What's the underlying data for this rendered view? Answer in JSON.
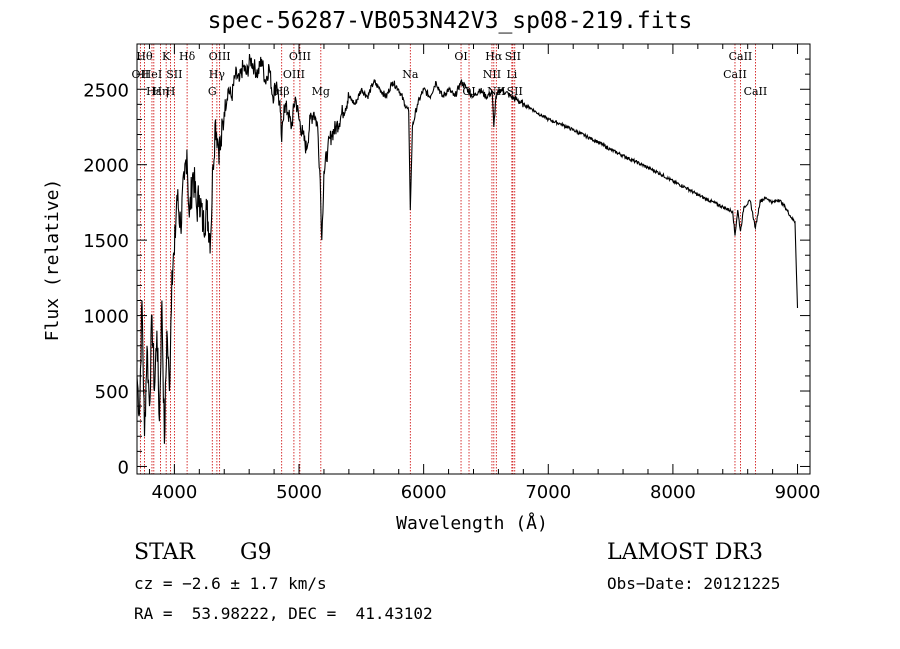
{
  "chart_data": {
    "type": "line",
    "title": "spec-56287-VB053N42V3_sp08-219.fits",
    "xlabel": "Wavelength (Å)",
    "ylabel": "Flux (relative)",
    "xlim": [
      3700,
      9100
    ],
    "ylim": [
      -50,
      2800
    ],
    "xticks": [
      4000,
      5000,
      6000,
      7000,
      8000,
      9000
    ],
    "yticks": [
      0,
      500,
      1000,
      1500,
      2000,
      2500
    ],
    "series": [
      {
        "name": "flux",
        "x": [
          3700,
          3720,
          3740,
          3760,
          3780,
          3800,
          3820,
          3840,
          3860,
          3880,
          3900,
          3920,
          3940,
          3960,
          3980,
          4000,
          4020,
          4050,
          4080,
          4100,
          4120,
          4150,
          4180,
          4200,
          4230,
          4260,
          4290,
          4310,
          4330,
          4350,
          4370,
          4400,
          4430,
          4460,
          4490,
          4520,
          4550,
          4580,
          4610,
          4640,
          4670,
          4700,
          4730,
          4760,
          4790,
          4820,
          4850,
          4861,
          4880,
          4910,
          4940,
          4970,
          5000,
          5030,
          5060,
          5090,
          5120,
          5150,
          5170,
          5183,
          5200,
          5230,
          5260,
          5300,
          5350,
          5400,
          5450,
          5500,
          5550,
          5600,
          5650,
          5700,
          5750,
          5800,
          5850,
          5880,
          5893,
          5910,
          5950,
          6000,
          6050,
          6100,
          6150,
          6200,
          6250,
          6300,
          6350,
          6400,
          6450,
          6500,
          6550,
          6563,
          6580,
          6620,
          6660,
          6700,
          6750,
          6800,
          6850,
          6900,
          7000,
          7100,
          7200,
          7300,
          7400,
          7500,
          7600,
          7700,
          7800,
          7900,
          8000,
          8100,
          8200,
          8300,
          8400,
          8480,
          8498,
          8520,
          8542,
          8570,
          8620,
          8662,
          8700,
          8750,
          8800,
          8850,
          8900,
          8950,
          8980,
          9000
        ],
        "y": [
          600,
          350,
          1100,
          200,
          800,
          400,
          1000,
          500,
          900,
          300,
          1100,
          150,
          900,
          500,
          1300,
          1400,
          1800,
          1600,
          1900,
          2100,
          1650,
          1950,
          1700,
          1800,
          1600,
          1700,
          1500,
          2000,
          2300,
          2150,
          2100,
          2350,
          2500,
          2450,
          2600,
          2550,
          2650,
          2600,
          2700,
          2650,
          2600,
          2700,
          2550,
          2650,
          2450,
          2550,
          2350,
          2150,
          2400,
          2350,
          2250,
          2450,
          2300,
          2200,
          2100,
          2300,
          2350,
          2250,
          1900,
          1500,
          1950,
          2100,
          2200,
          2250,
          2350,
          2450,
          2400,
          2500,
          2450,
          2550,
          2500,
          2450,
          2550,
          2500,
          2400,
          2350,
          1700,
          2250,
          2400,
          2500,
          2450,
          2550,
          2450,
          2500,
          2450,
          2550,
          2500,
          2450,
          2500,
          2450,
          2480,
          2250,
          2450,
          2500,
          2480,
          2450,
          2430,
          2400,
          2380,
          2350,
          2300,
          2270,
          2230,
          2190,
          2150,
          2100,
          2060,
          2020,
          1980,
          1940,
          1890,
          1850,
          1800,
          1760,
          1720,
          1690,
          1530,
          1700,
          1560,
          1720,
          1760,
          1580,
          1760,
          1780,
          1750,
          1770,
          1720,
          1650,
          1620,
          1050
        ]
      }
    ],
    "lines": [
      {
        "x": 3727,
        "label": "OII",
        "row": 2
      },
      {
        "x": 3760,
        "label": "Hθ",
        "row": 1
      },
      {
        "x": 3820,
        "label": "HeI",
        "row": 2
      },
      {
        "x": 3835,
        "label": "Hε",
        "row": 3
      },
      {
        "x": 3889,
        "label": "Hη",
        "row": 3
      },
      {
        "x": 3934,
        "label": "K",
        "row": 1
      },
      {
        "x": 3969,
        "label": "H",
        "row": 3
      },
      {
        "x": 4000,
        "label": "SII",
        "row": 2
      },
      {
        "x": 4102,
        "label": "Hδ",
        "row": 1
      },
      {
        "x": 4304,
        "label": "G",
        "row": 3
      },
      {
        "x": 4341,
        "label": "Hγ",
        "row": 2
      },
      {
        "x": 4363,
        "label": "OIII",
        "row": 1
      },
      {
        "x": 4861,
        "label": "Hβ",
        "row": 3
      },
      {
        "x": 4959,
        "label": "OIII",
        "row": 2
      },
      {
        "x": 5007,
        "label": "OIII",
        "row": 1
      },
      {
        "x": 5175,
        "label": "Mg",
        "row": 3
      },
      {
        "x": 5893,
        "label": "Na",
        "row": 2
      },
      {
        "x": 6300,
        "label": "OI",
        "row": 1
      },
      {
        "x": 6364,
        "label": "OI",
        "row": 3
      },
      {
        "x": 6548,
        "label": "NII",
        "row": 2
      },
      {
        "x": 6563,
        "label": "Hα",
        "row": 1
      },
      {
        "x": 6583,
        "label": "NII",
        "row": 3
      },
      {
        "x": 6708,
        "label": "Li",
        "row": 2
      },
      {
        "x": 6716,
        "label": "SII",
        "row": 1
      },
      {
        "x": 6731,
        "label": "SII",
        "row": 3
      },
      {
        "x": 8498,
        "label": "CaII",
        "row": 2
      },
      {
        "x": 8542,
        "label": "CaII",
        "row": 1
      },
      {
        "x": 8662,
        "label": "CaII",
        "row": 3
      }
    ],
    "line_color": "#cc0000"
  },
  "footer": {
    "object_type": "STAR",
    "subclass": "G9",
    "survey": "LAMOST DR3",
    "cz": "cz = −2.6 ± 1.7 km/s",
    "obs_date": "Obs−Date: 20121225",
    "radec": "RA =  53.98222, DEC =  41.43102"
  }
}
